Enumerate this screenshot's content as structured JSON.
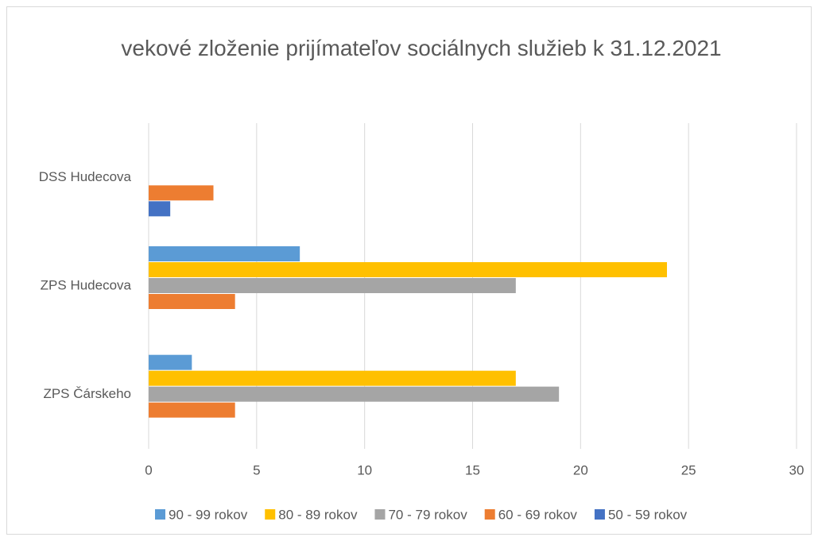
{
  "chart_data": {
    "type": "hbar",
    "title": "vekové zloženie prijímateľov sociálnych služieb k 31.12.2021",
    "categories": [
      "DSS Hudecova",
      "ZPS Hudecova",
      "ZPS Čárskeho"
    ],
    "series": [
      {
        "name": "90 - 99 rokov",
        "color": "#5b9bd5",
        "values": [
          0,
          7,
          2
        ]
      },
      {
        "name": "80 - 89 rokov",
        "color": "#ffc000",
        "values": [
          0,
          24,
          17
        ]
      },
      {
        "name": "70 - 79 rokov",
        "color": "#a5a5a5",
        "values": [
          0,
          17,
          19
        ]
      },
      {
        "name": "60 - 69 rokov",
        "color": "#ed7d31",
        "values": [
          3,
          4,
          4
        ]
      },
      {
        "name": "50 - 59 rokov",
        "color": "#4472c4",
        "values": [
          1,
          0,
          0
        ]
      }
    ],
    "xlim": [
      0,
      30
    ],
    "xticks": [
      0,
      5,
      10,
      15,
      20,
      25,
      30
    ],
    "grid": true,
    "legend": "bottom"
  }
}
